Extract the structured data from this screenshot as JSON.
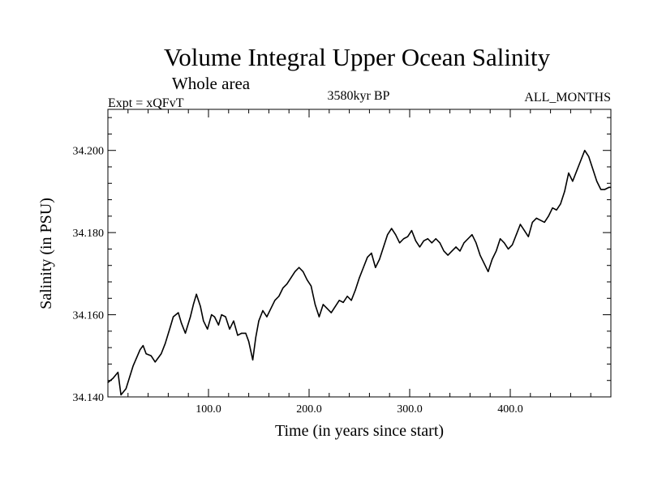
{
  "chart_data": {
    "type": "line",
    "title": "Volume Integral Upper Ocean Salinity",
    "subtitle": "Whole area",
    "header_left": "Expt = xQFvT",
    "header_center": "3580kyr BP",
    "header_right": "ALL_MONTHS",
    "xlabel": "Time (in years since start)",
    "ylabel": "Salinity (in PSU)",
    "xlim": [
      0,
      500
    ],
    "ylim": [
      34.14,
      34.21
    ],
    "x_ticks": [
      100,
      200,
      300,
      400
    ],
    "x_tick_labels": [
      "100.0",
      "200.0",
      "300.0",
      "400.0"
    ],
    "y_ticks": [
      34.14,
      34.16,
      34.18,
      34.2
    ],
    "y_tick_labels": [
      "34.140",
      "34.160",
      "34.180",
      "34.200"
    ],
    "grid": false,
    "series": [
      {
        "name": "salinity",
        "color": "#000000",
        "x": [
          0,
          5,
          10,
          13,
          18,
          25,
          32,
          35,
          38,
          43,
          47,
          53,
          57,
          62,
          65,
          70,
          73,
          77,
          82,
          85,
          88,
          92,
          95,
          99,
          103,
          106,
          110,
          113,
          117,
          121,
          125,
          129,
          133,
          137,
          140,
          144,
          147,
          150,
          154,
          158,
          162,
          166,
          170,
          174,
          178,
          182,
          186,
          190,
          194,
          198,
          202,
          206,
          210,
          214,
          218,
          222,
          226,
          230,
          234,
          238,
          242,
          246,
          250,
          254,
          258,
          262,
          266,
          270,
          274,
          278,
          282,
          286,
          290,
          294,
          298,
          302,
          306,
          310,
          314,
          318,
          322,
          326,
          330,
          334,
          338,
          342,
          346,
          350,
          354,
          358,
          362,
          366,
          370,
          374,
          378,
          382,
          386,
          390,
          394,
          398,
          402,
          406,
          410,
          414,
          418,
          422,
          426,
          430,
          434,
          438,
          442,
          446,
          450,
          454,
          458,
          462,
          466,
          470,
          474,
          478,
          482,
          486,
          490,
          494,
          498,
          500
        ],
        "values": [
          34.1435,
          34.1445,
          34.146,
          34.1405,
          34.142,
          34.1475,
          34.1515,
          34.1525,
          34.1505,
          34.15,
          34.1485,
          34.1505,
          34.153,
          34.157,
          34.1595,
          34.1605,
          34.158,
          34.1555,
          34.1595,
          34.1625,
          34.165,
          34.162,
          34.1585,
          34.1565,
          34.16,
          34.1595,
          34.1575,
          34.16,
          34.1595,
          34.1565,
          34.1585,
          34.155,
          34.1555,
          34.1555,
          34.1535,
          34.149,
          34.1545,
          34.1585,
          34.161,
          34.1595,
          34.1615,
          34.1635,
          34.1645,
          34.1665,
          34.1675,
          34.169,
          34.1705,
          34.1715,
          34.1705,
          34.1685,
          34.167,
          34.1625,
          34.1595,
          34.1625,
          34.1615,
          34.1605,
          34.162,
          34.1635,
          34.163,
          34.1645,
          34.1635,
          34.166,
          34.169,
          34.1715,
          34.174,
          34.175,
          34.1715,
          34.1735,
          34.1765,
          34.1795,
          34.181,
          34.1795,
          34.1775,
          34.1785,
          34.179,
          34.1805,
          34.178,
          34.1765,
          34.178,
          34.1785,
          34.1775,
          34.1785,
          34.1775,
          34.1755,
          34.1745,
          34.1755,
          34.1765,
          34.1755,
          34.1775,
          34.1785,
          34.1795,
          34.1775,
          34.1745,
          34.1725,
          34.1705,
          34.1735,
          34.1755,
          34.1785,
          34.1775,
          34.176,
          34.177,
          34.1795,
          34.182,
          34.1805,
          34.179,
          34.1825,
          34.1835,
          34.183,
          34.1825,
          34.184,
          34.186,
          34.1855,
          34.187,
          34.19,
          34.1945,
          34.1925,
          34.195,
          34.1975,
          34.2,
          34.1985,
          34.1955,
          34.1925,
          34.1905,
          34.1905,
          34.191,
          34.191
        ]
      }
    ]
  }
}
